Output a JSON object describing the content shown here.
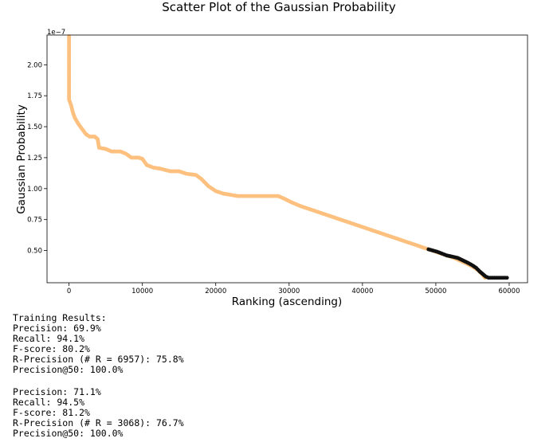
{
  "chart_data": {
    "type": "scatter",
    "title": "Scatter Plot of the Gaussian Probability",
    "xlabel": "Ranking (ascending)",
    "ylabel": "Gaussian Probability",
    "offset_label": "1e−7",
    "xlim": [
      -3000,
      62500
    ],
    "ylim": [
      0.24,
      2.24
    ],
    "x_ticks": [
      0,
      10000,
      20000,
      30000,
      40000,
      50000,
      60000
    ],
    "y_ticks": [
      0.5,
      0.75,
      1.0,
      1.25,
      1.5,
      1.75,
      2.0
    ],
    "grid": false,
    "colors": {
      "normal": "#fdc07e",
      "anomaly": "#111111"
    },
    "series": [
      {
        "color": "#fdc07e",
        "points": [
          [
            0,
            2.23
          ],
          [
            0,
            2.12
          ],
          [
            0,
            2.02
          ],
          [
            0,
            1.99
          ],
          [
            0,
            1.89
          ],
          [
            0,
            1.86
          ],
          [
            0,
            1.83
          ],
          [
            0,
            1.79
          ],
          [
            0,
            1.76
          ],
          [
            0,
            1.72
          ],
          [
            300,
            1.67
          ],
          [
            500,
            1.62
          ],
          [
            800,
            1.57
          ],
          [
            1300,
            1.52
          ],
          [
            1800,
            1.48
          ],
          [
            2300,
            1.44
          ],
          [
            2800,
            1.42
          ],
          [
            3500,
            1.42
          ],
          [
            3900,
            1.4
          ],
          [
            4100,
            1.33
          ],
          [
            5000,
            1.32
          ],
          [
            5800,
            1.3
          ],
          [
            7000,
            1.3
          ],
          [
            7800,
            1.28
          ],
          [
            8500,
            1.25
          ],
          [
            9500,
            1.25
          ],
          [
            10000,
            1.24
          ],
          [
            10600,
            1.19
          ],
          [
            11500,
            1.17
          ],
          [
            12500,
            1.16
          ],
          [
            13800,
            1.14
          ],
          [
            15000,
            1.14
          ],
          [
            16000,
            1.12
          ],
          [
            17300,
            1.11
          ],
          [
            18000,
            1.08
          ],
          [
            19000,
            1.02
          ],
          [
            20000,
            0.98
          ],
          [
            21000,
            0.96
          ],
          [
            22000,
            0.95
          ],
          [
            23000,
            0.94
          ],
          [
            25000,
            0.94
          ],
          [
            27000,
            0.94
          ],
          [
            28500,
            0.94
          ],
          [
            29300,
            0.92
          ],
          [
            30300,
            0.89
          ],
          [
            31500,
            0.86
          ],
          [
            33000,
            0.83
          ],
          [
            34500,
            0.8
          ],
          [
            36000,
            0.77
          ],
          [
            37500,
            0.74
          ],
          [
            39000,
            0.71
          ],
          [
            40500,
            0.68
          ],
          [
            42000,
            0.65
          ],
          [
            43500,
            0.62
          ],
          [
            45000,
            0.59
          ],
          [
            46500,
            0.56
          ],
          [
            48000,
            0.53
          ],
          [
            49500,
            0.5
          ],
          [
            51000,
            0.47
          ],
          [
            52500,
            0.44
          ],
          [
            54000,
            0.4
          ],
          [
            55000,
            0.37
          ],
          [
            55800,
            0.34
          ],
          [
            56300,
            0.31
          ],
          [
            56700,
            0.28
          ]
        ]
      },
      {
        "color": "#111111",
        "points": [
          [
            49000,
            0.51
          ],
          [
            50200,
            0.49
          ],
          [
            51500,
            0.46
          ],
          [
            52300,
            0.45
          ],
          [
            53000,
            0.44
          ],
          [
            53700,
            0.42
          ],
          [
            54400,
            0.4
          ],
          [
            55000,
            0.38
          ],
          [
            55500,
            0.36
          ],
          [
            56000,
            0.33
          ],
          [
            56400,
            0.31
          ],
          [
            56800,
            0.29
          ],
          [
            57200,
            0.28
          ],
          [
            58000,
            0.28
          ],
          [
            59000,
            0.28
          ],
          [
            59700,
            0.28
          ]
        ]
      }
    ]
  },
  "results": {
    "block1": [
      "Training Results:",
      "Precision: 69.9%",
      "Recall: 94.1%",
      "F-score: 80.2%",
      "R-Precision (# R = 6957): 75.8%",
      "Precision@50: 100.0%"
    ],
    "block2": [
      "Precision: 71.1%",
      "Recall: 94.5%",
      "F-score: 81.2%",
      "R-Precision (# R = 3068): 76.7%",
      "Precision@50: 100.0%"
    ]
  }
}
